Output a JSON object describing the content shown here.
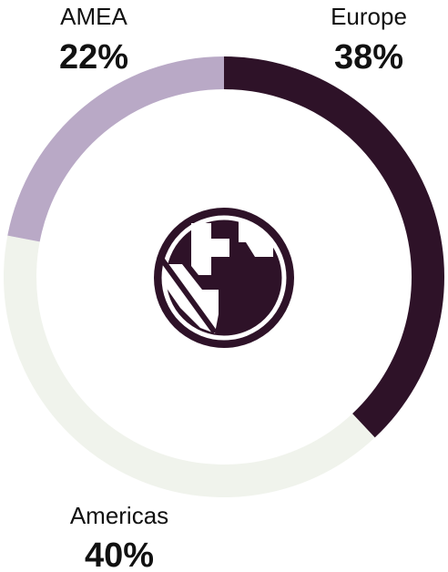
{
  "chart_data": {
    "type": "donut",
    "categories": [
      "Europe",
      "Americas",
      "AMEA"
    ],
    "values": [
      38,
      40,
      22
    ],
    "value_labels": [
      "38%",
      "40%",
      "22%"
    ],
    "colors": [
      "#2e1228",
      "#f0f3ec",
      "#b9a9c6"
    ]
  }
}
